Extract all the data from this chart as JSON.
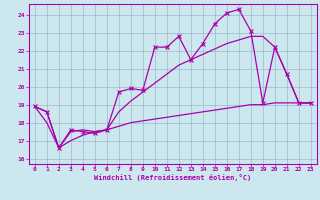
{
  "xlabel": "Windchill (Refroidissement éolien,°C)",
  "bg_color": "#cce8ee",
  "line_color": "#aa00aa",
  "grid_color": "#99bbcc",
  "xlim": [
    -0.5,
    23.5
  ],
  "ylim": [
    15.7,
    24.6
  ],
  "yticks": [
    16,
    17,
    18,
    19,
    20,
    21,
    22,
    23,
    24
  ],
  "xticks": [
    0,
    1,
    2,
    3,
    4,
    5,
    6,
    7,
    8,
    9,
    10,
    11,
    12,
    13,
    14,
    15,
    16,
    17,
    18,
    19,
    20,
    21,
    22,
    23
  ],
  "line1_x": [
    0,
    1,
    2,
    3,
    4,
    5,
    6,
    7,
    8,
    9,
    10,
    11,
    12,
    13,
    14,
    15,
    16,
    17,
    18,
    19,
    20,
    21,
    22,
    23
  ],
  "line1_y": [
    18.9,
    18.6,
    16.6,
    17.6,
    17.5,
    17.4,
    17.6,
    19.7,
    19.9,
    19.8,
    22.2,
    22.2,
    22.8,
    21.5,
    22.4,
    23.5,
    24.1,
    24.3,
    23.1,
    19.1,
    22.2,
    20.7,
    19.1,
    19.1
  ],
  "line2_x": [
    0,
    1,
    2,
    3,
    4,
    5,
    6,
    7,
    8,
    9,
    10,
    11,
    12,
    13,
    14,
    15,
    16,
    17,
    18,
    19,
    20,
    21,
    22,
    23
  ],
  "line2_y": [
    18.9,
    18.6,
    16.6,
    17.5,
    17.6,
    17.5,
    17.6,
    17.8,
    18.0,
    18.1,
    18.2,
    18.3,
    18.4,
    18.5,
    18.6,
    18.7,
    18.8,
    18.9,
    19.0,
    19.0,
    19.1,
    19.1,
    19.1,
    19.1
  ],
  "line3_x": [
    0,
    1,
    2,
    3,
    4,
    5,
    6,
    7,
    8,
    9,
    10,
    11,
    12,
    13,
    14,
    15,
    16,
    17,
    18,
    19,
    20,
    21,
    22,
    23
  ],
  "line3_y": [
    18.9,
    18.0,
    16.6,
    17.0,
    17.3,
    17.5,
    17.6,
    18.6,
    19.2,
    19.7,
    20.2,
    20.7,
    21.2,
    21.5,
    21.8,
    22.1,
    22.4,
    22.6,
    22.8,
    22.8,
    22.2,
    20.7,
    19.1,
    19.1
  ]
}
